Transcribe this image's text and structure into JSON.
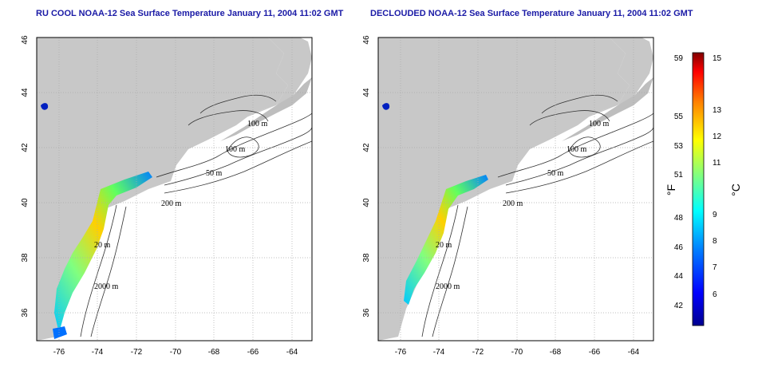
{
  "titles": [
    "RU COOL NOAA-12 Sea Surface Temperature January 11, 2004 11:02 GMT",
    "DECLOUDED NOAA-12 Sea Surface Temperature January 11, 2004 11:02 GMT"
  ],
  "map": {
    "lon_range": [
      -77.2,
      -62.9
    ],
    "lat_range": [
      35,
      46
    ],
    "lon_ticks": [
      "-76",
      "-74",
      "-72",
      "-70",
      "-68",
      "-66",
      "-64"
    ],
    "lat_ticks": [
      "36",
      "38",
      "40",
      "42",
      "44",
      "46"
    ],
    "contour_labels": [
      "100 m",
      "100 m",
      "50 m",
      "200 m",
      "20 m",
      "2000 m"
    ],
    "land_color": "#c8c8c8",
    "grid": "dotted"
  },
  "colorbar": {
    "fahrenheit_ticks": [
      "59",
      "55",
      "53",
      "51",
      "48",
      "46",
      "44",
      "42"
    ],
    "celsius_ticks": [
      "15",
      "13",
      "12",
      "11",
      "9",
      "8",
      "7",
      "6"
    ],
    "f_unit": "°F",
    "c_unit": "°C",
    "colors": [
      "#00008f",
      "#0000ff",
      "#0080ff",
      "#00ffff",
      "#80ff80",
      "#ffff00",
      "#ff8000",
      "#ff0000",
      "#800000"
    ]
  }
}
